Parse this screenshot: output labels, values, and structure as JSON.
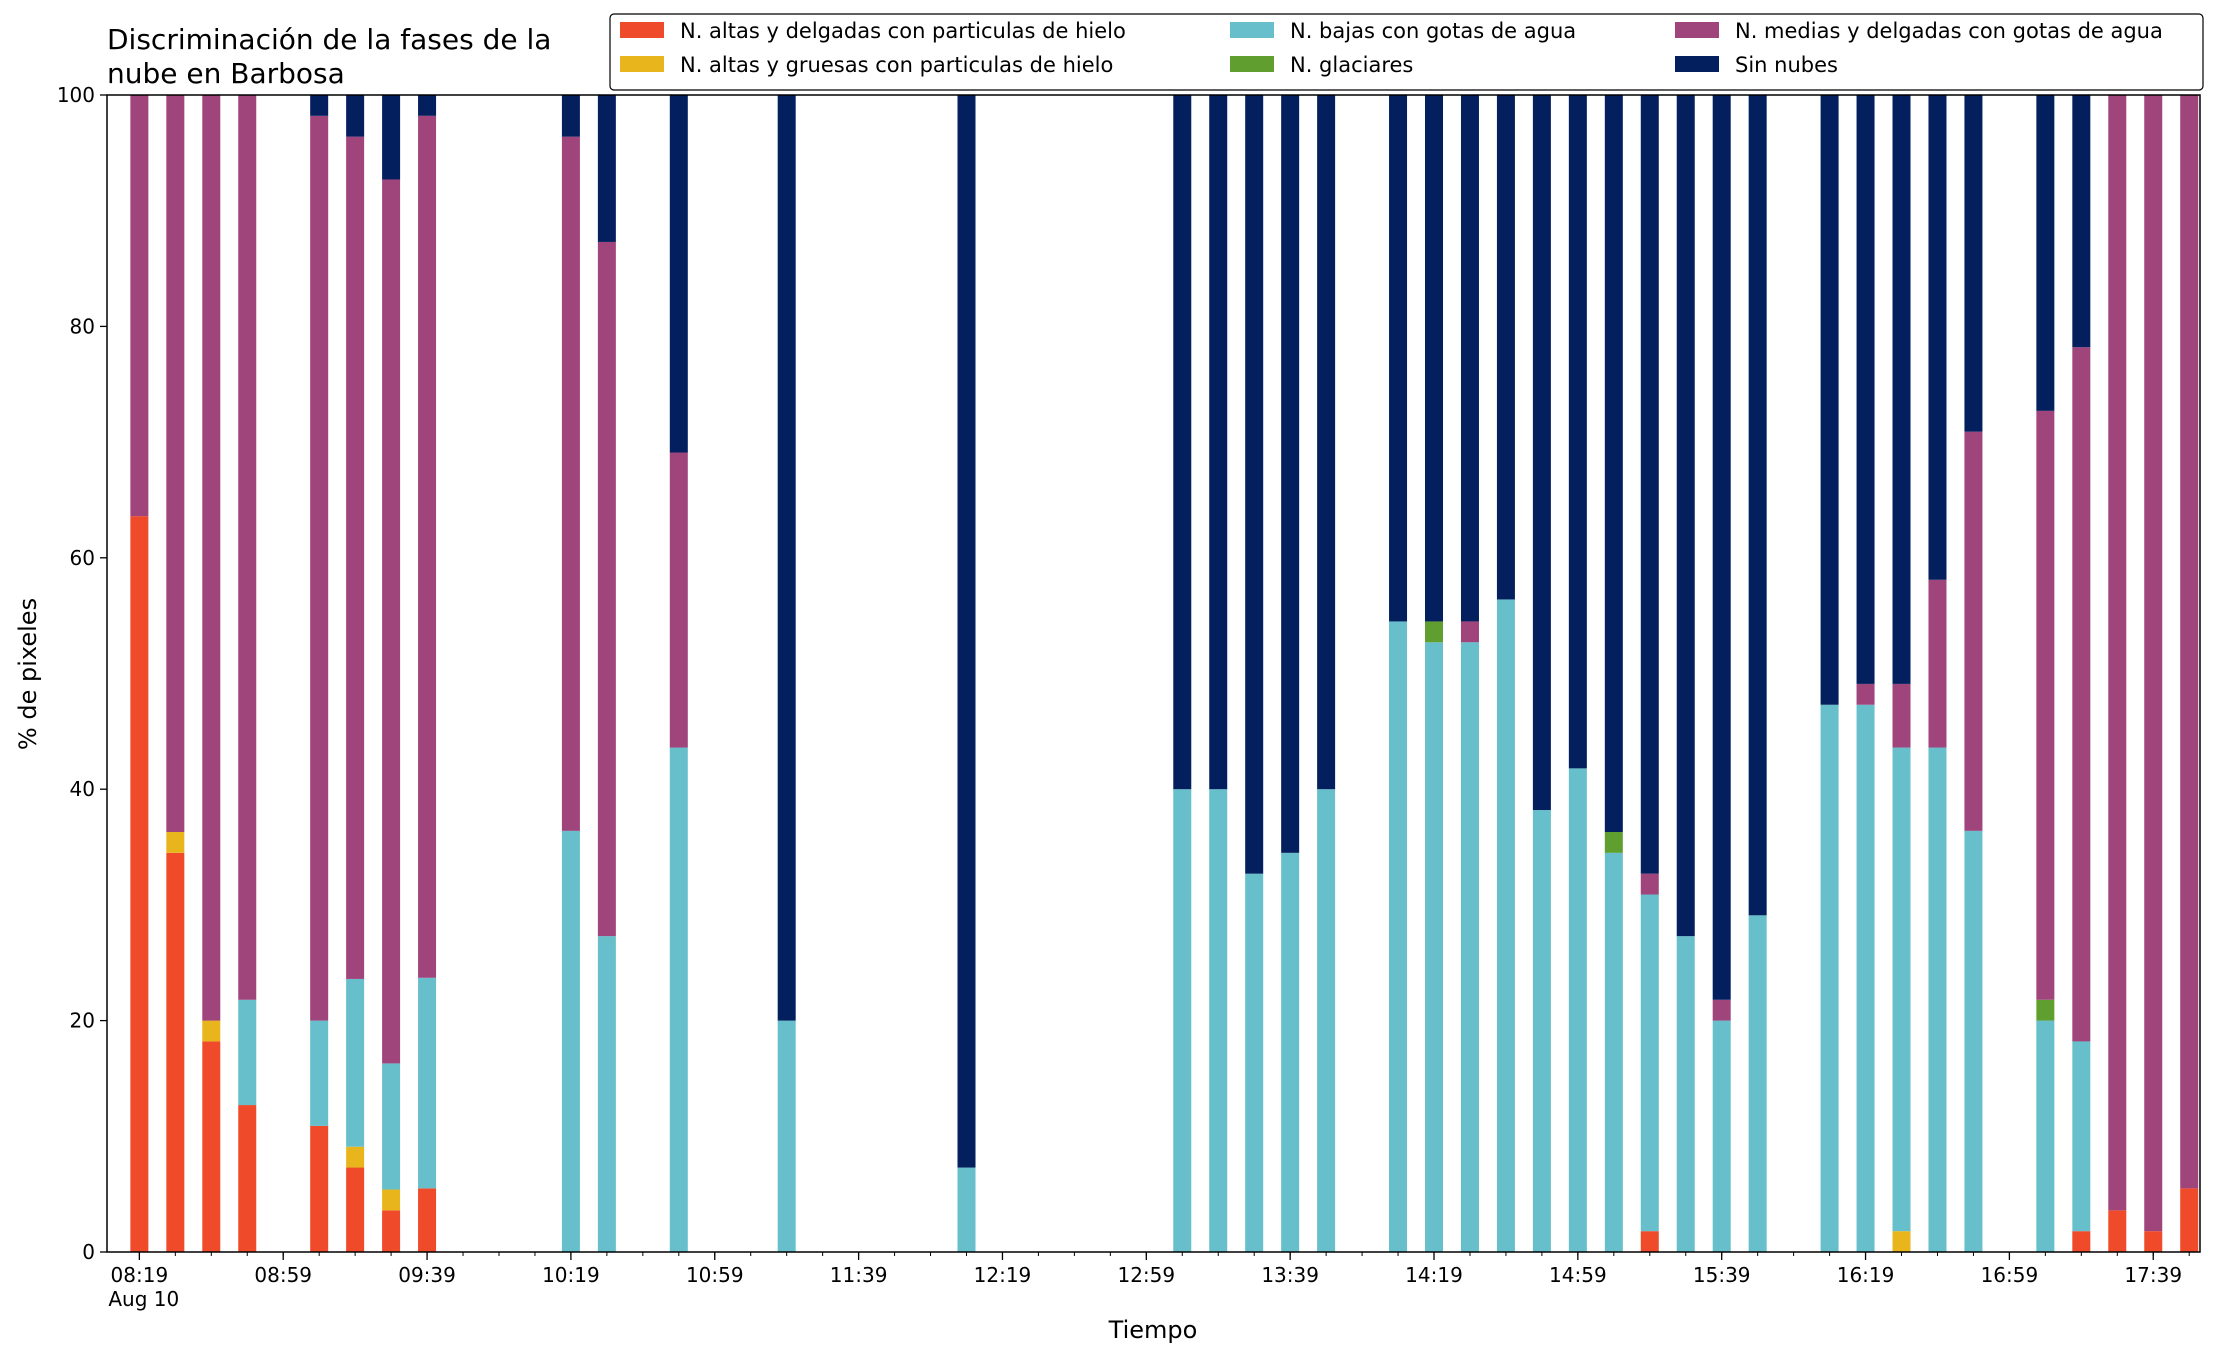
{
  "chart_data": {
    "type": "bar",
    "stacked": true,
    "title_lines": [
      "Discriminación de la fases de la",
      "nube en Barbosa"
    ],
    "xlabel": "Tiempo",
    "ylabel": "% de pixeles",
    "ylim": [
      0,
      100
    ],
    "yticks": [
      0,
      20,
      40,
      60,
      80,
      100
    ],
    "x_unit_minutes": true,
    "xlim_minutes": [
      490,
      1072
    ],
    "major_xticks": [
      {
        "m": 499,
        "label": "08:19",
        "sub": "Aug 10"
      },
      {
        "m": 539,
        "label": "08:59"
      },
      {
        "m": 579,
        "label": "09:39"
      },
      {
        "m": 619,
        "label": "10:19"
      },
      {
        "m": 659,
        "label": "10:59"
      },
      {
        "m": 699,
        "label": "11:39"
      },
      {
        "m": 739,
        "label": "12:19"
      },
      {
        "m": 779,
        "label": "12:59"
      },
      {
        "m": 819,
        "label": "13:39"
      },
      {
        "m": 859,
        "label": "14:19"
      },
      {
        "m": 899,
        "label": "14:59"
      },
      {
        "m": 939,
        "label": "15:39"
      },
      {
        "m": 979,
        "label": "16:19"
      },
      {
        "m": 1019,
        "label": "16:59"
      },
      {
        "m": 1059,
        "label": "17:39"
      }
    ],
    "legend_position": "top-right",
    "series": [
      {
        "key": "ice_thin",
        "name": "N. altas y delgadas con particulas de hielo",
        "color": "#ef4a2a"
      },
      {
        "key": "ice_thick",
        "name": "N. altas y gruesas con particulas de hielo",
        "color": "#e8b61c"
      },
      {
        "key": "water_low",
        "name": "N. bajas con gotas de agua",
        "color": "#66bfca"
      },
      {
        "key": "glacier",
        "name": "N. glaciares",
        "color": "#5f9e2f"
      },
      {
        "key": "water_mid",
        "name": "N. medias y delgadas con gotas de agua",
        "color": "#a0447c"
      },
      {
        "key": "clear",
        "name": "Sin nubes",
        "color": "#031f5e"
      }
    ],
    "legend_order": [
      "ice_thin",
      "ice_thick",
      "water_low",
      "glacier",
      "water_mid",
      "clear"
    ],
    "stack_order": [
      "ice_thin",
      "ice_thick",
      "water_low",
      "glacier",
      "water_mid",
      "clear"
    ],
    "bars": [
      {
        "time": "08:19",
        "values": [
          63.6,
          0,
          0,
          0,
          36.4,
          0
        ]
      },
      {
        "time": "08:29",
        "values": [
          34.5,
          1.8,
          0,
          0,
          63.7,
          0
        ]
      },
      {
        "time": "08:39",
        "values": [
          18.2,
          1.8,
          0,
          0,
          80.0,
          0
        ]
      },
      {
        "time": "08:49",
        "values": [
          12.7,
          0,
          9.1,
          0,
          78.2,
          0
        ]
      },
      {
        "time": "09:09",
        "values": [
          10.9,
          0,
          9.1,
          0,
          78.2,
          1.8
        ]
      },
      {
        "time": "09:19",
        "values": [
          7.3,
          1.8,
          14.5,
          0,
          72.8,
          3.6
        ]
      },
      {
        "time": "09:29",
        "values": [
          3.6,
          1.8,
          10.9,
          0,
          76.4,
          7.3
        ]
      },
      {
        "time": "09:39",
        "values": [
          5.5,
          0,
          18.2,
          0,
          74.5,
          1.8
        ]
      },
      {
        "time": "10:19",
        "values": [
          0,
          0,
          36.4,
          0,
          60.0,
          3.6
        ]
      },
      {
        "time": "10:29",
        "values": [
          0,
          0,
          27.3,
          0,
          60.0,
          12.7
        ]
      },
      {
        "time": "10:49",
        "values": [
          0,
          0,
          43.6,
          0,
          25.5,
          30.9
        ]
      },
      {
        "time": "11:19",
        "values": [
          0,
          0,
          20.0,
          0,
          0,
          80.0
        ]
      },
      {
        "time": "12:09",
        "values": [
          0,
          0,
          7.3,
          0,
          0,
          92.7
        ]
      },
      {
        "time": "13:09",
        "values": [
          0,
          0,
          40.0,
          0,
          0,
          60.0
        ]
      },
      {
        "time": "13:19",
        "values": [
          0,
          0,
          40.0,
          0,
          0,
          60.0
        ]
      },
      {
        "time": "13:29",
        "values": [
          0,
          0,
          32.7,
          0,
          0,
          67.3
        ]
      },
      {
        "time": "13:39",
        "values": [
          0,
          0,
          34.5,
          0,
          0,
          65.5
        ]
      },
      {
        "time": "13:49",
        "values": [
          0,
          0,
          40.0,
          0,
          0,
          60.0
        ]
      },
      {
        "time": "14:09",
        "values": [
          0,
          0,
          54.5,
          0,
          0,
          45.5
        ]
      },
      {
        "time": "14:19",
        "values": [
          0,
          0,
          52.7,
          1.8,
          0,
          45.5
        ]
      },
      {
        "time": "14:29",
        "values": [
          0,
          0,
          52.7,
          0,
          1.8,
          45.5
        ]
      },
      {
        "time": "14:39",
        "values": [
          0,
          0,
          56.4,
          0,
          0,
          43.6
        ]
      },
      {
        "time": "14:49",
        "values": [
          0,
          0,
          38.2,
          0,
          0,
          61.8
        ]
      },
      {
        "time": "14:59",
        "values": [
          0,
          0,
          41.8,
          0,
          0,
          58.2
        ]
      },
      {
        "time": "15:09",
        "values": [
          0,
          0,
          34.5,
          1.8,
          0,
          63.7
        ]
      },
      {
        "time": "15:19",
        "values": [
          1.8,
          0,
          29.1,
          0,
          1.8,
          67.3
        ]
      },
      {
        "time": "15:29",
        "values": [
          0,
          0,
          27.3,
          0,
          0,
          72.7
        ]
      },
      {
        "time": "15:39",
        "values": [
          0,
          0,
          20.0,
          0,
          1.8,
          78.2
        ]
      },
      {
        "time": "15:49",
        "values": [
          0,
          0,
          29.1,
          0,
          0,
          70.9
        ]
      },
      {
        "time": "16:09",
        "values": [
          0,
          0,
          47.3,
          0,
          0,
          52.7
        ]
      },
      {
        "time": "16:19",
        "values": [
          0,
          0,
          47.3,
          0,
          1.8,
          50.9
        ]
      },
      {
        "time": "16:29",
        "values": [
          0,
          1.8,
          41.8,
          0,
          5.5,
          50.9
        ]
      },
      {
        "time": "16:39",
        "values": [
          0,
          0,
          43.6,
          0,
          14.5,
          41.9
        ]
      },
      {
        "time": "16:49",
        "values": [
          0,
          0,
          36.4,
          0,
          34.5,
          29.1
        ]
      },
      {
        "time": "17:09",
        "values": [
          0,
          0,
          20.0,
          1.8,
          50.9,
          27.3
        ]
      },
      {
        "time": "17:19",
        "values": [
          1.8,
          0,
          16.4,
          0,
          60.0,
          21.8
        ]
      },
      {
        "time": "17:29",
        "values": [
          3.6,
          0,
          0,
          0,
          96.4,
          0
        ]
      },
      {
        "time": "17:39",
        "values": [
          1.8,
          0,
          0,
          0,
          98.2,
          0
        ]
      },
      {
        "time": "17:49",
        "values": [
          5.5,
          0,
          0,
          0,
          94.5,
          0
        ]
      }
    ]
  }
}
